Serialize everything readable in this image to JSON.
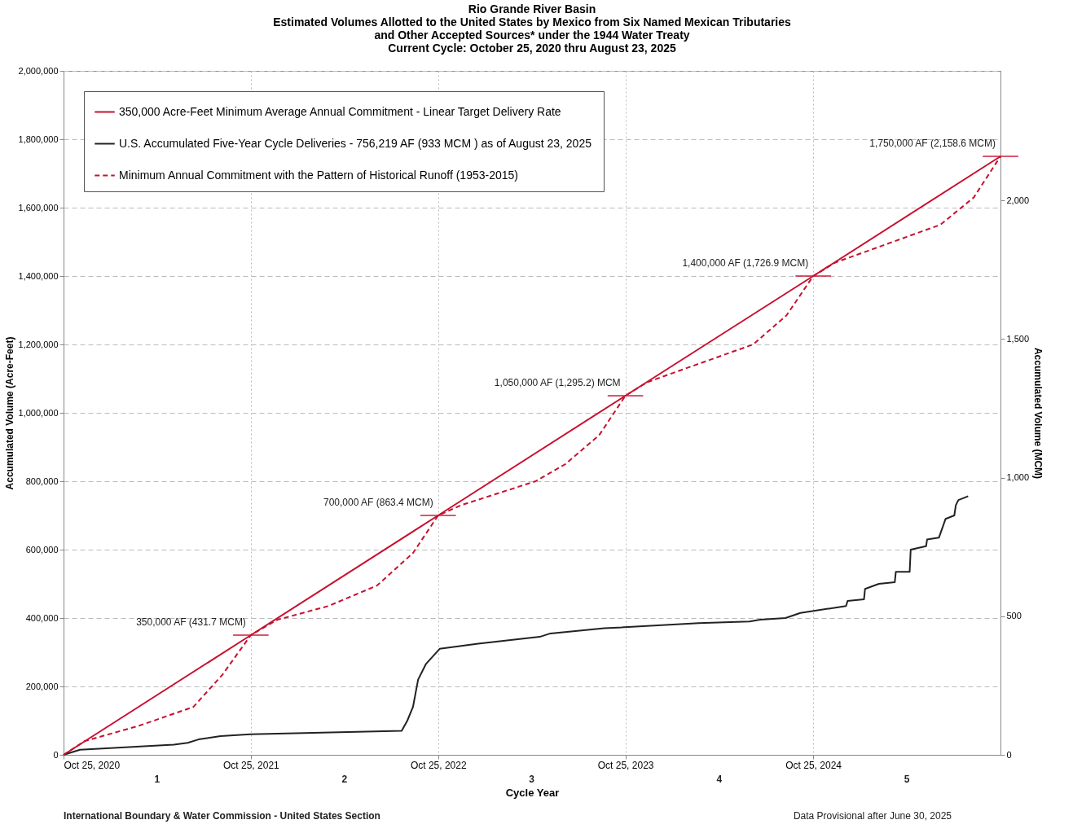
{
  "chart_data": {
    "type": "line",
    "title": [
      "Rio Grande River Basin",
      "Estimated Volumes Allotted to the United States by Mexico from Six Named Mexican Tributaries",
      "and Other Accepted Sources* under the 1944 Water Treaty",
      "Current Cycle: October 25, 2020 thru August 23, 2025"
    ],
    "xlabel": "Cycle Year",
    "ylabel": "Accumulated Volume (Acre-Feet)",
    "y2label": "Accumulated Volume (MCM)",
    "xlim": [
      "2020-10-25",
      "2025-10-25"
    ],
    "xticks": [
      {
        "value": "2020-10-25",
        "label": "Oct 25, 2020"
      },
      {
        "value": "2021-10-25",
        "label": "Oct 25, 2021"
      },
      {
        "value": "2022-10-25",
        "label": "Oct 25, 2022"
      },
      {
        "value": "2023-10-25",
        "label": "Oct 25, 2023"
      },
      {
        "value": "2024-10-25",
        "label": "Oct 25, 2024"
      }
    ],
    "ylim": [
      0,
      2000000
    ],
    "yticks": [
      {
        "value": 0,
        "label": "0"
      },
      {
        "value": 200000,
        "label": "200,000"
      },
      {
        "value": 400000,
        "label": "400,000"
      },
      {
        "value": 600000,
        "label": "600,000"
      },
      {
        "value": 800000,
        "label": "800,000"
      },
      {
        "value": 1000000,
        "label": "1,000,000"
      },
      {
        "value": 1200000,
        "label": "1,200,000"
      },
      {
        "value": 1400000,
        "label": "1,400,000"
      },
      {
        "value": 1600000,
        "label": "1,600,000"
      },
      {
        "value": 1800000,
        "label": "1,800,000"
      },
      {
        "value": 2000000,
        "label": "2,000,000"
      }
    ],
    "y2lim": [
      0,
      2467
    ],
    "y2ticks": [
      {
        "value": 0,
        "label": "0"
      },
      {
        "value": 500,
        "label": "500"
      },
      {
        "value": 1000,
        "label": "1,000"
      },
      {
        "value": 1500,
        "label": "1,500"
      },
      {
        "value": 2000,
        "label": "2,000"
      }
    ],
    "grid": true,
    "legend": "top left",
    "marker": "none",
    "series": [
      {
        "name": "350,000 Acre-Feet Minimum Average Annual Commitment - Linear Target Delivery Rate",
        "color": "#c8102e",
        "line_style": "solid",
        "x": [
          "2020-10-25",
          "2021-10-25",
          "2022-10-25",
          "2023-10-25",
          "2024-10-25",
          "2025-10-25"
        ],
        "values": [
          0,
          350000,
          700000,
          1050000,
          1400000,
          1750000
        ]
      },
      {
        "name": "U.S. Accumulated Five-Year Cycle Deliveries - 756,219 AF (933 MCM ) as of August 23, 2025",
        "color": "#222222",
        "line_style": "solid",
        "x": [
          "2020-10-25",
          "2020-11-26",
          "2021-05-28",
          "2021-06-24",
          "2021-07-15",
          "2021-08-27",
          "2021-10-24",
          "2022-08-15",
          "2022-08-26",
          "2022-09-06",
          "2022-09-16",
          "2022-10-01",
          "2022-10-28",
          "2023-01-11",
          "2023-05-11",
          "2023-06-01",
          "2023-09-14",
          "2024-03-16",
          "2024-06-23",
          "2024-07-14",
          "2024-09-01",
          "2024-09-30",
          "2024-12-28",
          "2024-12-31",
          "2025-02-01",
          "2025-02-03",
          "2025-03-02",
          "2025-04-02",
          "2025-04-04",
          "2025-05-01",
          "2025-05-03",
          "2025-06-02",
          "2025-06-04",
          "2025-06-27",
          "2025-07-10",
          "2025-07-27",
          "2025-07-30",
          "2025-08-04",
          "2025-08-23"
        ],
        "values": [
          0,
          15000,
          30000,
          35000,
          45000,
          55000,
          60000,
          70000,
          100000,
          140000,
          220000,
          265000,
          310000,
          325000,
          345000,
          355000,
          370000,
          385000,
          390000,
          395000,
          400000,
          415000,
          435000,
          450000,
          455000,
          485000,
          500000,
          505000,
          535000,
          535000,
          600000,
          610000,
          630000,
          635000,
          690000,
          700000,
          730000,
          745000,
          756219
        ]
      },
      {
        "name": "Minimum Annual Commitment with the Pattern of Historical Runoff (1953-2015)",
        "color": "#c8102e",
        "line_style": "dashed",
        "x": [
          "2020-10-25",
          "2020-12-05",
          "2021-03-21",
          "2021-07-05",
          "2021-08-31",
          "2021-10-25",
          "2021-12-16",
          "2022-03-25",
          "2022-06-28",
          "2022-09-06",
          "2022-10-25",
          "2022-12-09",
          "2023-05-03",
          "2023-06-30",
          "2023-09-04",
          "2023-10-25",
          "2023-12-07",
          "2024-06-30",
          "2024-09-03",
          "2024-10-25",
          "2024-12-08",
          "2025-06-30",
          "2025-09-03",
          "2025-10-25"
        ],
        "values": [
          0,
          40000,
          85000,
          140000,
          235000,
          350000,
          395000,
          435000,
          495000,
          590000,
          700000,
          730000,
          800000,
          850000,
          935000,
          1050000,
          1090000,
          1200000,
          1285000,
          1400000,
          1440000,
          1550000,
          1630000,
          1750000
        ]
      }
    ],
    "annotations": [
      {
        "text": "350,000 AF (431.7 MCM)",
        "x": "2021-10-25",
        "y": 350000
      },
      {
        "text": "700,000 AF (863.4 MCM)",
        "x": "2022-10-25",
        "y": 700000
      },
      {
        "text": "1,050,000 AF (1,295.2) MCM",
        "x": "2023-10-25",
        "y": 1050000
      },
      {
        "text": "1,400,000  AF (1,726.9 MCM)",
        "x": "2024-10-25",
        "y": 1400000
      },
      {
        "text": "1,750,000 AF (2,158.6 MCM)",
        "x": "2025-10-25",
        "y": 1750000
      },
      "1",
      "2",
      "3",
      "4",
      "5",
      "International Boundary & Water Commission - United States Section",
      "Data Provisional after June 30, 2025"
    ]
  }
}
